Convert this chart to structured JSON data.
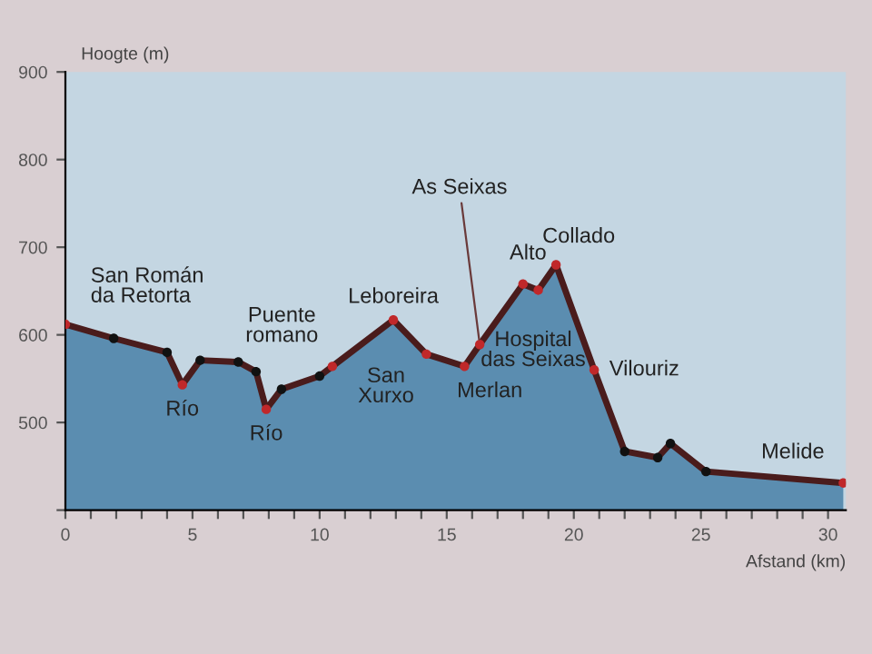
{
  "chart_data": {
    "type": "area",
    "xlabel": "Afstand (km)",
    "ylabel": "Hoogte (m)",
    "x": [
      0,
      1.9,
      4.0,
      4.6,
      5.3,
      6.8,
      7.5,
      7.9,
      8.5,
      10.0,
      10.5,
      12.9,
      14.2,
      15.7,
      16.3,
      18.0,
      18.6,
      19.3,
      20.8,
      22.0,
      23.3,
      23.8,
      25.2,
      30.6
    ],
    "series": [
      {
        "color": "#5b8db0",
        "marker": "none",
        "values": [
          612,
          596,
          580,
          543,
          571,
          569,
          558,
          515,
          538,
          553,
          564,
          617,
          578,
          564,
          589,
          658,
          651,
          680,
          560,
          467,
          460,
          476,
          444,
          431
        ]
      },
      {
        "type": "line",
        "marker": "circle",
        "color": "#4a1c1c",
        "values": [
          612,
          596,
          580,
          543,
          571,
          569,
          558,
          515,
          538,
          553,
          564,
          617,
          578,
          564,
          589,
          658,
          651,
          680,
          560,
          467,
          460,
          476,
          444,
          431
        ],
        "colors": [
          "#c0282a",
          "#111111",
          "#111111",
          "#c0282a",
          "#111111",
          "#111111",
          "#111111",
          "#c0282a",
          "#111111",
          "#111111",
          "#c0282a",
          "#c0282a",
          "#c0282a",
          "#c0282a",
          "#c0282a",
          "#c0282a",
          "#c0282a",
          "#c0282a",
          "#c0282a",
          "#111111",
          "#111111",
          "#111111",
          "#111111",
          "#c0282a"
        ]
      }
    ],
    "xlim": [
      0,
      30.7
    ],
    "ylim": [
      400,
      900
    ],
    "xticks": [
      0,
      {
        "value": 1,
        "label": null
      },
      {
        "value": 2,
        "label": null
      },
      {
        "value": 3,
        "label": null
      },
      {
        "value": 4,
        "label": null
      },
      5,
      {
        "value": 6,
        "label": null
      },
      {
        "value": 7,
        "label": null
      },
      {
        "value": 8,
        "label": null
      },
      {
        "value": 9,
        "label": null
      },
      10,
      {
        "value": 11,
        "label": null
      },
      {
        "value": 12,
        "label": null
      },
      {
        "value": 13,
        "label": null
      },
      {
        "value": 14,
        "label": null
      },
      15,
      {
        "value": 16,
        "label": null
      },
      {
        "value": 17,
        "label": null
      },
      {
        "value": 18,
        "label": null
      },
      {
        "value": 19,
        "label": null
      },
      20,
      {
        "value": 21,
        "label": null
      },
      {
        "value": 22,
        "label": null
      },
      {
        "value": 23,
        "label": null
      },
      {
        "value": 24,
        "label": null
      },
      25,
      {
        "value": 26,
        "label": null
      },
      {
        "value": 27,
        "label": null
      },
      {
        "value": 28,
        "label": null
      },
      {
        "value": 29,
        "label": null
      },
      30
    ],
    "yticks": [
      {
        "value": 400,
        "label": null
      },
      500,
      600,
      700,
      800,
      900
    ],
    "annotations": [
      {
        "text": "San Román\nda Retorta",
        "x": 0,
        "y": 612
      },
      {
        "text": "Río",
        "x": 4.6,
        "y": 543
      },
      {
        "text": "Río",
        "x": 7.9,
        "y": 515
      },
      {
        "text": "Puente\nromano",
        "x": 10.5,
        "y": 564
      },
      {
        "text": "Leboreira",
        "x": 12.9,
        "y": 617
      },
      {
        "text": "San\nXurxo",
        "x": 14.2,
        "y": 578
      },
      {
        "text": "Merlan",
        "x": 15.7,
        "y": 564
      },
      {
        "text": "As Seixas",
        "x": 16.3,
        "y": 589
      },
      {
        "text": "Alto",
        "x": 18.0,
        "y": 658
      },
      {
        "text": "Hospital\ndas Seixas",
        "x": 18.6,
        "y": 651
      },
      {
        "text": "Collado",
        "x": 19.3,
        "y": 680
      },
      {
        "text": "Vilouriz",
        "x": 20.8,
        "y": 560
      },
      {
        "text": "Melide",
        "x": 30.6,
        "y": 431
      }
    ]
  }
}
